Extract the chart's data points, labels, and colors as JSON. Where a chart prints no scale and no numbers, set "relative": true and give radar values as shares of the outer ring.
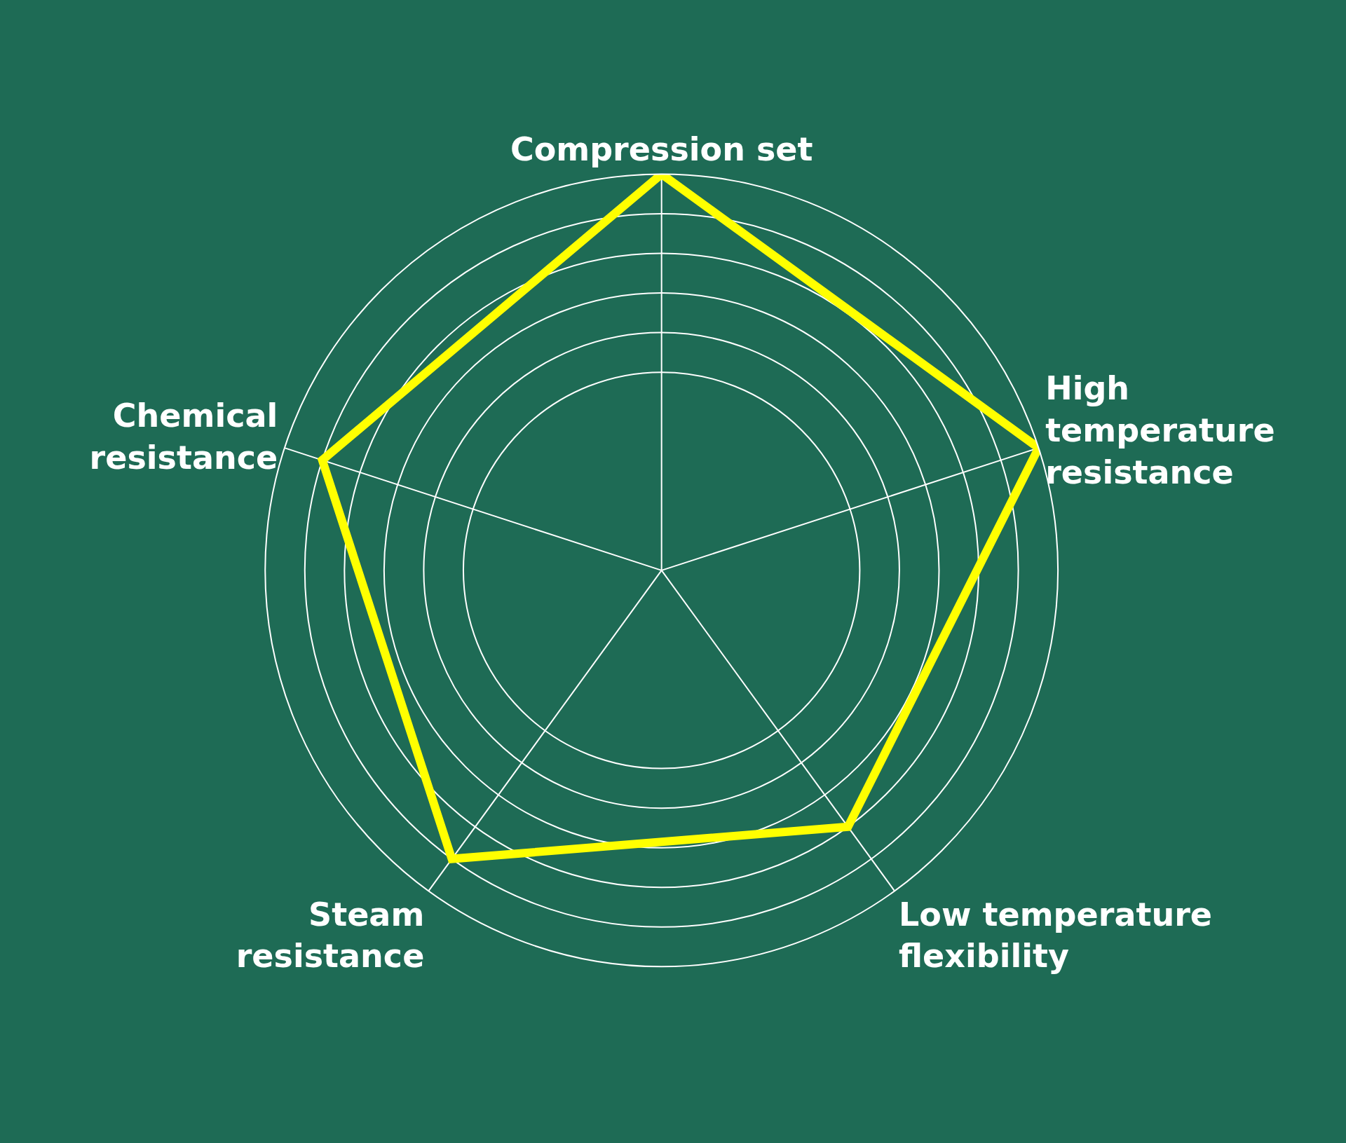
{
  "chart_data": {
    "type": "radar",
    "relative": true,
    "categories": [
      "Compression set",
      "High\ntemperature\nresistance",
      "Low temperature\nflexibility",
      "Steam\nresistance",
      "Chemical\nresistance"
    ],
    "series": [
      {
        "color": "#ffff00",
        "values": [
          1.0,
          1.0,
          0.8,
          0.9,
          0.9
        ]
      }
    ],
    "grid": true,
    "marker": "none"
  }
}
